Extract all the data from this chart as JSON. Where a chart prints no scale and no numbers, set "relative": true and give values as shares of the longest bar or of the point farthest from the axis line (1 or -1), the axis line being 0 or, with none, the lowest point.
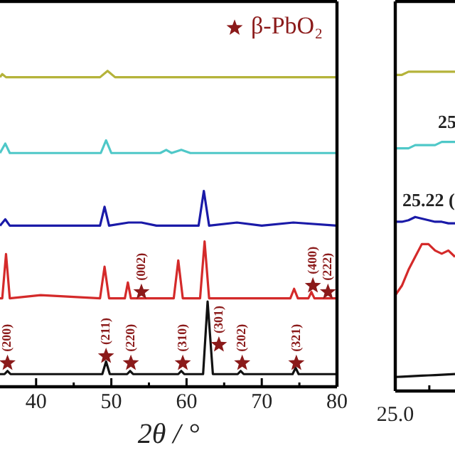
{
  "chart_data": [
    {
      "type": "line",
      "xlabel": "2θ / °",
      "xlim": [
        35.2,
        80
      ],
      "xticks": [
        40,
        {
          "value": 45,
          "label": null
        },
        50,
        {
          "value": 55,
          "label": null
        },
        60,
        {
          "value": 65,
          "label": null
        },
        70,
        {
          "value": 75,
          "label": null
        },
        80
      ],
      "relative": true,
      "grid": false,
      "legend": false,
      "marker": "none",
      "line_style": "solid",
      "tick_labels": "x",
      "series": [
        {
          "color": "#b5b33a",
          "x": [
            35.2,
            35.5,
            36,
            40,
            48.5,
            49.5,
            50.5,
            60,
            70,
            80
          ],
          "values": [
            0.98,
            0.99,
            0.98,
            0.98,
            0.98,
            1.0,
            0.98,
            0.98,
            0.98,
            0.98
          ]
        },
        {
          "color": "#4fc8c8",
          "x": [
            35.2,
            35.9,
            36.5,
            40,
            48.6,
            49.3,
            50,
            56.5,
            57.3,
            58,
            59.3,
            60.5,
            70,
            80
          ],
          "values": [
            0.74,
            0.77,
            0.74,
            0.74,
            0.74,
            0.78,
            0.74,
            0.74,
            0.75,
            0.74,
            0.75,
            0.74,
            0.74,
            0.74
          ]
        },
        {
          "color": "#1a1aa8",
          "x": [
            35.2,
            35.9,
            36.5,
            40,
            48.5,
            49.1,
            49.7,
            52.3,
            54,
            56,
            61.6,
            62.3,
            63,
            66.7,
            70,
            74.2,
            80
          ],
          "values": [
            0.51,
            0.53,
            0.51,
            0.51,
            0.51,
            0.57,
            0.51,
            0.52,
            0.52,
            0.51,
            0.51,
            0.62,
            0.51,
            0.52,
            0.51,
            0.52,
            0.51
          ]
        },
        {
          "color": "#d42a2a",
          "x": [
            35.2,
            35.5,
            36.0,
            36.5,
            40.6,
            48.5,
            49.1,
            49.7,
            51.8,
            52.2,
            52.6,
            58.3,
            58.9,
            59.5,
            61.8,
            62.4,
            63,
            73.8,
            74.3,
            74.8,
            76.2,
            76.6,
            77,
            80
          ],
          "values": [
            0.28,
            0.28,
            0.42,
            0.28,
            0.29,
            0.28,
            0.38,
            0.28,
            0.28,
            0.33,
            0.28,
            0.28,
            0.4,
            0.28,
            0.28,
            0.46,
            0.28,
            0.28,
            0.31,
            0.28,
            0.28,
            0.3,
            0.28,
            0.28
          ]
        },
        {
          "color": "#111111",
          "x": [
            35.2,
            35.8,
            36.2,
            36.6,
            48.8,
            49.3,
            49.8,
            52.1,
            52.5,
            52.9,
            58.9,
            59.3,
            59.7,
            62.2,
            62.8,
            63.5,
            66.8,
            67.2,
            67.6,
            74.1,
            74.5,
            74.9,
            80
          ],
          "values": [
            0.04,
            0.04,
            0.05,
            0.04,
            0.04,
            0.08,
            0.04,
            0.04,
            0.05,
            0.04,
            0.04,
            0.05,
            0.04,
            0.04,
            0.27,
            0.04,
            0.04,
            0.05,
            0.04,
            0.04,
            0.06,
            0.04,
            0.04
          ]
        }
      ],
      "annotations": [
        "β-PbO₂",
        {
          "text": "(200)",
          "x": 36.2,
          "y": 0.075
        },
        {
          "text": "(211)",
          "x": 49.3,
          "y": 0.097
        },
        {
          "text": "(220)",
          "x": 52.6,
          "y": 0.075
        },
        {
          "text": "(310)",
          "x": 59.5,
          "y": 0.075
        },
        {
          "text": "(301)",
          "x": 64.3,
          "y": 0.133
        },
        {
          "text": "(202)",
          "x": 67.4,
          "y": 0.075
        },
        {
          "text": "(321)",
          "x": 74.6,
          "y": 0.075
        },
        {
          "text": "(002)",
          "x": 54.0,
          "y": 0.3
        },
        {
          "text": "(400)",
          "x": 76.8,
          "y": 0.32
        },
        {
          "text": "(222)",
          "x": 78.8,
          "y": 0.3
        }
      ]
    },
    {
      "type": "line",
      "categories": [
        null,
        null,
        null,
        null,
        null,
        null,
        null,
        null,
        null,
        null
      ],
      "relative": true,
      "grid": false,
      "legend": false,
      "marker": "none",
      "line_style": "solid",
      "tick_labels": false,
      "series": [
        {
          "color": "#b5b33a",
          "values": [
            0.99,
            0.99,
            1,
            1,
            1,
            1,
            1,
            1,
            1,
            1
          ]
        },
        {
          "color": "#4fc8c8",
          "values": [
            0.76,
            0.76,
            0.76,
            0.77,
            0.77,
            0.77,
            0.77,
            0.78,
            0.78,
            0.78
          ]
        },
        {
          "color": "#1a1aa8",
          "values": [
            0.53,
            0.53,
            0.535,
            0.545,
            0.54,
            0.535,
            0.53,
            0.53,
            0.525,
            0.525
          ]
        },
        {
          "color": "#d42a2a",
          "values": [
            0.3,
            0.33,
            0.38,
            0.42,
            0.46,
            0.46,
            0.44,
            0.43,
            0.44,
            0.42
          ]
        },
        {
          "color": "#111111",
          "values": [
            0.044,
            0.045,
            0.046,
            0.047,
            0.048,
            0.049,
            0.05,
            0.051,
            0.052,
            0.053
          ]
        }
      ],
      "annotations": [
        "25.0",
        "25.22 (",
        "25"
      ]
    }
  ]
}
